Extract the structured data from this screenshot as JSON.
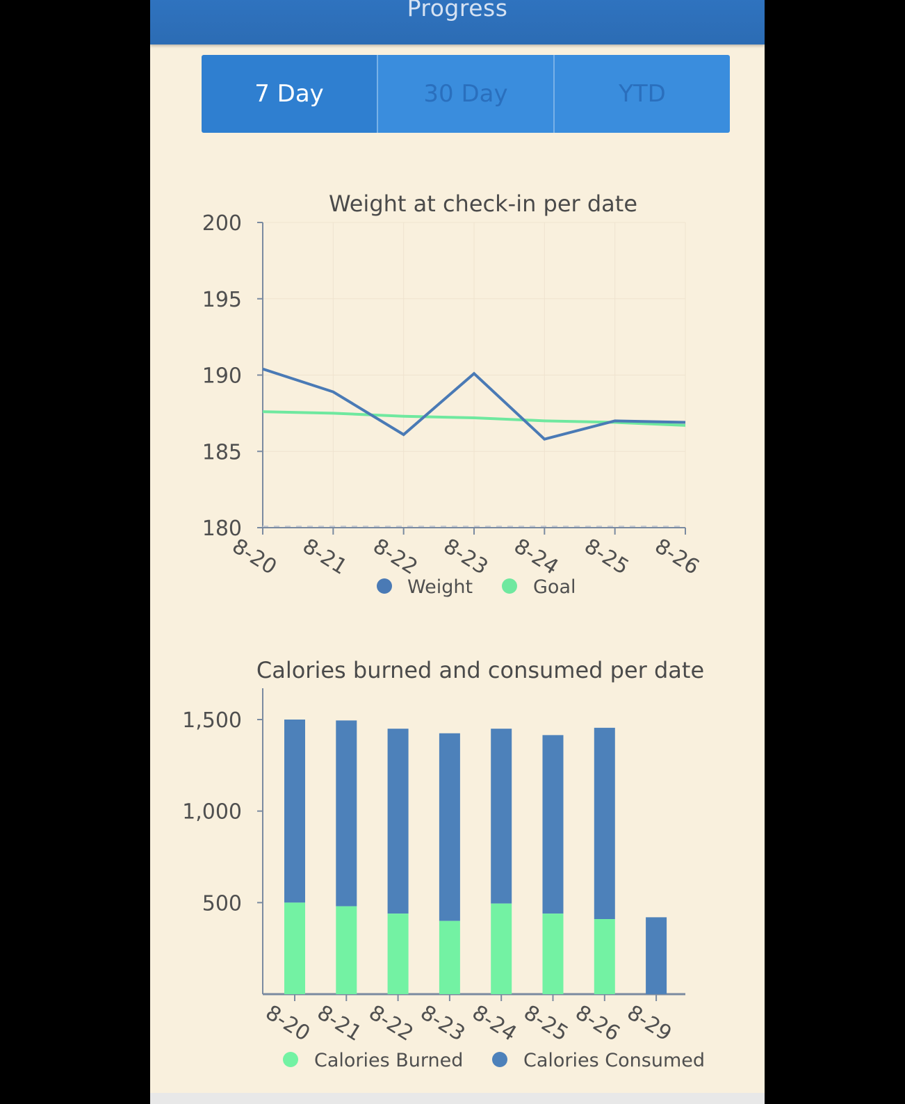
{
  "header": {
    "title": "Progress"
  },
  "tabs": [
    {
      "label": "7 Day",
      "active": true
    },
    {
      "label": "30 Day",
      "active": false
    },
    {
      "label": "YTD",
      "active": false
    }
  ],
  "colors": {
    "weight": "#4a7ab5",
    "goal": "#6fe89f",
    "calories_burned": "#73f2a3",
    "calories_consumed": "#4d81ba"
  },
  "chart_data": [
    {
      "type": "line",
      "title": "Weight at check-in per date",
      "categories": [
        "8-20",
        "8-21",
        "8-22",
        "8-23",
        "8-24",
        "8-25",
        "8-26"
      ],
      "series": [
        {
          "name": "Weight",
          "values": [
            190.4,
            188.9,
            186.1,
            190.1,
            185.8,
            187.0,
            186.9
          ]
        },
        {
          "name": "Goal",
          "values": [
            187.6,
            187.5,
            187.3,
            187.2,
            187.0,
            186.9,
            186.7
          ]
        }
      ],
      "yticks": [
        "200",
        "195",
        "190",
        "185",
        "180"
      ],
      "ylim": [
        180,
        200
      ],
      "grid": true,
      "legend": "bottom-center"
    },
    {
      "type": "bar",
      "stacked": true,
      "title": "Calories burned and consumed per date",
      "categories": [
        "8-20",
        "8-21",
        "8-22",
        "8-23",
        "8-24",
        "8-25",
        "8-26",
        "8-29"
      ],
      "series": [
        {
          "name": "Calories Burned",
          "values": [
            500,
            480,
            440,
            400,
            495,
            440,
            410,
            0
          ]
        },
        {
          "name": "Calories Consumed",
          "values": [
            1000,
            1015,
            1010,
            1025,
            955,
            975,
            1045,
            420
          ]
        }
      ],
      "yticks": [
        "1,500",
        "1,000",
        "500"
      ],
      "ylim": [
        0,
        1650
      ],
      "legend": "bottom-center"
    }
  ]
}
